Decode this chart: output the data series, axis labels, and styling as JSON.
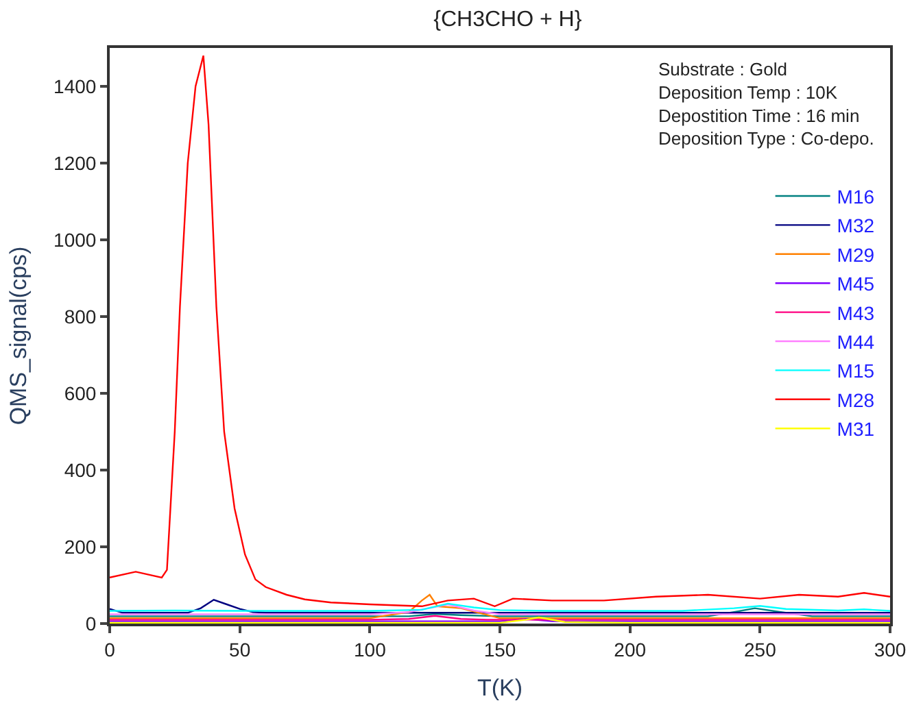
{
  "chart_data": {
    "type": "line",
    "title": "{CH3CHO + H}",
    "xlabel": "T(K)",
    "ylabel": "QMS_signal(cps)",
    "xlim": [
      0,
      300
    ],
    "xticks": [
      0,
      50,
      100,
      150,
      200,
      250,
      300
    ],
    "ylim": [
      0,
      1500
    ],
    "yticks": [
      0,
      200,
      400,
      600,
      800,
      1000,
      1200,
      1400
    ],
    "legend": "top right",
    "marker": "none",
    "line_style": "solid",
    "annotations": [
      "Substrate : Gold",
      "Deposition Temp : 10K",
      "Depostition Time : 16 min",
      "Deposition Type : Co-depo."
    ],
    "series": [
      {
        "name": "M16",
        "color": "#008080",
        "x": [
          0,
          20,
          40,
          60,
          80,
          100,
          115,
          125,
          135,
          150,
          180,
          210,
          230,
          240,
          248,
          258,
          270,
          285,
          300
        ],
        "values": [
          19,
          19,
          19,
          19,
          19,
          19,
          19,
          25,
          22,
          19,
          19,
          19,
          19,
          30,
          40,
          30,
          19,
          19,
          19
        ]
      },
      {
        "name": "M32",
        "color": "#000080",
        "x": [
          0,
          5,
          15,
          30,
          35,
          40,
          45,
          50,
          55,
          60,
          80,
          120,
          150,
          200,
          250,
          300
        ],
        "values": [
          38,
          28,
          28,
          28,
          40,
          62,
          50,
          38,
          30,
          28,
          28,
          28,
          28,
          28,
          28,
          28
        ]
      },
      {
        "name": "M29",
        "color": "#ff8000",
        "x": [
          0,
          20,
          40,
          60,
          100,
          115,
          120,
          123,
          126,
          135,
          150,
          200,
          250,
          300
        ],
        "values": [
          14,
          14,
          14,
          14,
          14,
          30,
          60,
          75,
          45,
          40,
          14,
          14,
          14,
          14
        ]
      },
      {
        "name": "M45",
        "color": "#8000ff",
        "x": [
          0,
          50,
          100,
          150,
          160,
          170,
          200,
          250,
          300
        ],
        "values": [
          6,
          6,
          6,
          6,
          12,
          6,
          6,
          6,
          6
        ]
      },
      {
        "name": "M43",
        "color": "#ff0080",
        "x": [
          0,
          50,
          100,
          115,
          125,
          135,
          145,
          200,
          250,
          300
        ],
        "values": [
          10,
          10,
          10,
          12,
          20,
          12,
          10,
          10,
          10,
          10
        ]
      },
      {
        "name": "M44",
        "color": "#ff80ff",
        "x": [
          0,
          50,
          100,
          115,
          130,
          140,
          150,
          200,
          250,
          300
        ],
        "values": [
          24,
          24,
          24,
          30,
          50,
          34,
          24,
          24,
          24,
          24
        ]
      },
      {
        "name": "M15",
        "color": "#00ffff",
        "x": [
          0,
          25,
          50,
          75,
          100,
          120,
          130,
          140,
          150,
          170,
          200,
          220,
          240,
          250,
          260,
          280,
          290,
          300
        ],
        "values": [
          33,
          34,
          33,
          33,
          33,
          36,
          52,
          42,
          35,
          33,
          33,
          33,
          40,
          46,
          38,
          34,
          37,
          33
        ]
      },
      {
        "name": "M28",
        "color": "#ff0000",
        "x": [
          0,
          10,
          20,
          22,
          25,
          27,
          30,
          33,
          36,
          38,
          41,
          44,
          48,
          52,
          56,
          60,
          68,
          75,
          85,
          100,
          120,
          130,
          140,
          148,
          155,
          170,
          190,
          210,
          230,
          250,
          265,
          280,
          290,
          300
        ],
        "values": [
          120,
          135,
          120,
          140,
          500,
          826,
          1200,
          1400,
          1480,
          1300,
          826,
          500,
          300,
          180,
          115,
          95,
          75,
          63,
          55,
          50,
          45,
          60,
          65,
          45,
          65,
          60,
          60,
          70,
          75,
          65,
          75,
          70,
          80,
          70
        ]
      },
      {
        "name": "M31",
        "color": "#ffff00",
        "x": [
          0,
          50,
          100,
          150,
          160,
          165,
          175,
          200,
          250,
          300
        ],
        "values": [
          2,
          2,
          2,
          2,
          10,
          16,
          4,
          2,
          2,
          2
        ]
      }
    ]
  }
}
